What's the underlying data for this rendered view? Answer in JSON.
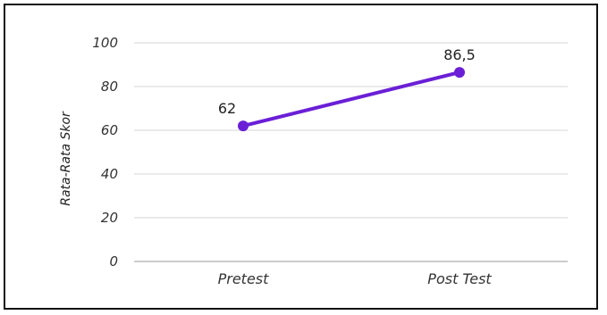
{
  "chart_data": {
    "type": "line",
    "title": "",
    "xlabel": "",
    "ylabel": "Rata-Rata Skor",
    "categories": [
      "Pretest",
      "Post Test"
    ],
    "series": [
      {
        "values": [
          62,
          86.5
        ],
        "value_labels": [
          "62",
          "86,5"
        ],
        "color": "#6a1fd6"
      }
    ],
    "ylim": [
      0,
      100
    ],
    "yticks": [
      0,
      20,
      40,
      60,
      80,
      100
    ],
    "grid": true,
    "legend": "none"
  }
}
